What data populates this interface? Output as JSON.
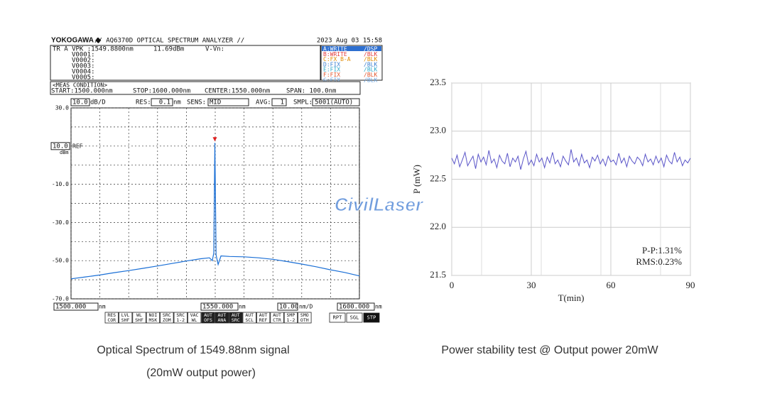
{
  "watermark": "CivilLaser",
  "captions": [
    "Optical Spectrum of 1549.88nm signal",
    "(20mW output power)",
    "Power stability test @ Output power 20mW"
  ],
  "osa_screen": {
    "brand": "YOKOGAWA ◆",
    "title": "// AQ6370D OPTICAL SPECTRUM ANALYZER //",
    "datetime": "2023 Aug 03 15:58",
    "marker": "TR A VPK :1549.8800nm",
    "level": "11.69dBm",
    "diff": "V-Vn:",
    "markers": [
      "V0001:",
      "V0002:",
      "V0003:",
      "V0004:",
      "V0005:"
    ],
    "traces": [
      [
        "A:WRITE",
        "/DSP"
      ],
      [
        "B:WRITE",
        "/BLK"
      ],
      [
        "C:FX B-A",
        "/BLK"
      ],
      [
        "D:FIX",
        "/BLK"
      ],
      [
        "E:FIX",
        "/BLK"
      ],
      [
        "F:FIX",
        "/BLK"
      ],
      [
        "G:FIX",
        "/BLK"
      ]
    ],
    "meas": "<MEAS CONDITION>",
    "start": "START:1500.000nm",
    "stop": "STOP:1600.000nm",
    "center": "CENTER:1550.000nm",
    "span": "SPAN: 100.0nm",
    "scale": "10.0",
    "scale_unit": "dB/D",
    "res_label": "RES:",
    "res": "0.1",
    "res_unit": "nm",
    "sens_label": "SENS:",
    "sens": "MID",
    "avg_label": "AVG:",
    "avg": "1",
    "smpl_label": "SMPL:",
    "smpl": "5001(AUTO)",
    "ref": "REF",
    "ref_unit": "dBm",
    "bottom_start": "1500.000",
    "bottom_start_unit": "nm",
    "bottom_center": "1550.000",
    "bottom_center_unit": "nm",
    "bottom_div": "10.00",
    "bottom_div_unit": "nm/D",
    "bottom_stop": "1600.000",
    "bottom_stop_unit": "nm",
    "softkeys": [
      [
        "RES",
        "COR"
      ],
      [
        "LVL",
        "SHF"
      ],
      [
        "WL",
        "SHF"
      ],
      [
        "NOI",
        "MSK"
      ],
      [
        "SRC",
        "ZOM"
      ],
      [
        "SRC",
        "1-2"
      ],
      [
        "VAC",
        "WL"
      ],
      [
        "AUT",
        "OFS"
      ],
      [
        "AUT",
        "ANA"
      ],
      [
        "AUT",
        "SRC"
      ],
      [
        "AUT",
        "SCL"
      ],
      [
        "AUT",
        "REF"
      ],
      [
        "AUT",
        "CTR"
      ],
      [
        "SMP",
        "1-2"
      ],
      [
        "SMO",
        "OTH"
      ]
    ],
    "buttons": [
      "RPT",
      "SGL",
      "STP"
    ]
  },
  "chart_data": [
    {
      "type": "line",
      "color": "#1a6fd6",
      "x": [
        1500,
        1505,
        1510,
        1515,
        1520,
        1525,
        1530,
        1535,
        1540,
        1545,
        1548,
        1549,
        1549.5,
        1549.88,
        1550.3,
        1551,
        1552,
        1555,
        1560,
        1565,
        1570,
        1575,
        1580,
        1585,
        1590,
        1595,
        1600
      ],
      "values": [
        -59.5,
        -58.5,
        -57.5,
        -56.3,
        -55.2,
        -54,
        -52.8,
        -51.5,
        -50.2,
        -49,
        -48.5,
        -50,
        -46,
        11.69,
        -47,
        -52,
        -47.5,
        -47.8,
        -48,
        -48.5,
        -49.3,
        -50.5,
        -51.8,
        -53.2,
        -54.8,
        -56.2,
        -58
      ],
      "xlim": [
        1500,
        1600
      ],
      "xticks": [
        1500,
        1510,
        1520,
        1530,
        1540,
        1550,
        1560,
        1570,
        1580,
        1590,
        1600
      ],
      "ylim": [
        -70,
        30
      ],
      "yticks": [
        {
          "value": 30,
          "label": "30.0"
        },
        {
          "value": 10,
          "label": "10.0"
        },
        {
          "value": -10,
          "label": "-10.0"
        },
        {
          "value": -30,
          "label": "-30.0"
        },
        {
          "value": -50,
          "label": "-50.0"
        },
        {
          "value": -70,
          "label": "-70.0"
        }
      ],
      "grid": true
    },
    {
      "type": "line",
      "color": "#5a55c8",
      "xlabel": "T(min)",
      "ylabel": "P (mW)",
      "x": [
        0,
        1,
        2,
        3,
        4,
        5,
        6,
        7,
        8,
        9,
        10,
        11,
        12,
        13,
        14,
        15,
        16,
        17,
        18,
        19,
        20,
        21,
        22,
        23,
        24,
        25,
        26,
        27,
        28,
        29,
        30,
        31,
        32,
        33,
        34,
        35,
        36,
        37,
        38,
        39,
        40,
        41,
        42,
        43,
        44,
        45,
        46,
        47,
        48,
        49,
        50,
        51,
        52,
        53,
        54,
        55,
        56,
        57,
        58,
        59,
        60,
        61,
        62,
        63,
        64,
        65,
        66,
        67,
        68,
        69,
        70,
        71,
        72,
        73,
        74,
        75,
        76,
        77,
        78,
        79,
        80,
        81,
        82,
        83,
        84,
        85,
        86,
        87,
        88,
        89,
        90
      ],
      "values": [
        22.72,
        22.66,
        22.75,
        22.63,
        22.7,
        22.78,
        22.64,
        22.69,
        22.74,
        22.61,
        22.76,
        22.68,
        22.73,
        22.65,
        22.8,
        22.67,
        22.71,
        22.62,
        22.75,
        22.69,
        22.66,
        22.77,
        22.63,
        22.72,
        22.68,
        22.74,
        22.6,
        22.71,
        22.79,
        22.65,
        22.7,
        22.64,
        22.76,
        22.68,
        22.72,
        22.62,
        22.73,
        22.67,
        22.78,
        22.66,
        22.7,
        22.63,
        22.74,
        22.69,
        22.65,
        22.81,
        22.68,
        22.72,
        22.64,
        22.76,
        22.67,
        22.7,
        22.62,
        22.73,
        22.69,
        22.75,
        22.66,
        22.71,
        22.64,
        22.74,
        22.68,
        22.7,
        22.65,
        22.77,
        22.67,
        22.72,
        22.63,
        22.74,
        22.69,
        22.66,
        22.73,
        22.7,
        22.64,
        22.76,
        22.68,
        22.71,
        22.65,
        22.74,
        22.67,
        22.72,
        22.63,
        22.75,
        22.69,
        22.66,
        22.78,
        22.68,
        22.73,
        22.64,
        22.7,
        22.67,
        22.72
      ],
      "xlim": [
        0,
        90
      ],
      "xticks": [
        0,
        30,
        60,
        90
      ],
      "ylim": [
        21.5,
        23.5
      ],
      "yticks": [
        {
          "value": 21.5,
          "label": "21.5"
        },
        {
          "value": 22,
          "label": "22.0"
        },
        {
          "value": 22.5,
          "label": "22.5"
        },
        {
          "value": 23,
          "label": "23.0"
        },
        {
          "value": 23.5,
          "label": "23.5"
        }
      ],
      "grid": true,
      "annotations": [
        "P-P:1.31%",
        "RMS:0.23%"
      ]
    }
  ]
}
